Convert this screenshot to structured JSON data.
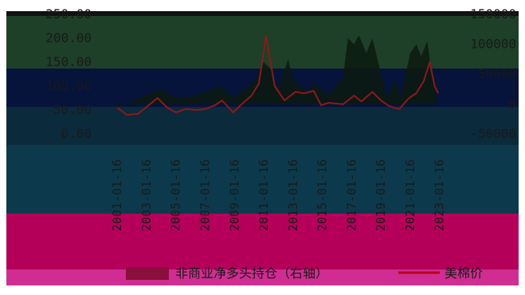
{
  "colors": {
    "band_top": "#1e3f28",
    "band_upper": "#06133a",
    "band_mid": "#0b2a3c",
    "band_lower": "#0c3a4c",
    "band_pink": "#b5005a",
    "band_pink_bottom": "#cf2d91",
    "area": "#0c1a10",
    "line": "#8b1a1a",
    "legend_area": "#8a0f3c",
    "legend_line": "#b8001c"
  },
  "chart_data": {
    "type": "line+area",
    "title": "",
    "xlabel": "",
    "left_axis": {
      "ylim": [
        0,
        250
      ],
      "ticks": [
        "250.00",
        "200.00",
        "150.00",
        "100.00",
        "50.00",
        "0.00"
      ]
    },
    "right_axis": {
      "ylim": [
        -50000,
        150000
      ],
      "ticks": [
        "150000",
        "100000",
        "50000",
        "0",
        "-50000"
      ]
    },
    "x_ticks": [
      "2001-01-16",
      "2003-01-16",
      "2005-01-16",
      "2007-01-16",
      "2009-01-16",
      "2011-01-16",
      "2013-01-16",
      "2015-01-16",
      "2017-01-16",
      "2019-01-16",
      "2021-01-16",
      "2023-01-16"
    ],
    "x_range": [
      "2000-01-01",
      "2023-06-30"
    ],
    "series": [
      {
        "name": "非商业净多头持仓（右轴）",
        "type": "area",
        "axis": "right",
        "points": [
          [
            "2001-01-16",
            -5000
          ],
          [
            "2002-01-16",
            5000
          ],
          [
            "2003-01-16",
            15000
          ],
          [
            "2004-01-16",
            25000
          ],
          [
            "2005-01-16",
            10000
          ],
          [
            "2006-01-16",
            12000
          ],
          [
            "2007-01-16",
            20000
          ],
          [
            "2008-01-16",
            30000
          ],
          [
            "2009-01-16",
            10000
          ],
          [
            "2010-06-16",
            40000
          ],
          [
            "2011-01-16",
            70000
          ],
          [
            "2011-06-16",
            60000
          ],
          [
            "2012-01-16",
            25000
          ],
          [
            "2012-09-16",
            75000
          ],
          [
            "2013-01-16",
            40000
          ],
          [
            "2014-01-16",
            20000
          ],
          [
            "2014-06-16",
            35000
          ],
          [
            "2015-06-16",
            15000
          ],
          [
            "2016-06-16",
            45000
          ],
          [
            "2016-10-16",
            110000
          ],
          [
            "2017-03-16",
            100000
          ],
          [
            "2017-07-16",
            115000
          ],
          [
            "2018-01-16",
            85000
          ],
          [
            "2018-06-16",
            110000
          ],
          [
            "2019-06-16",
            10000
          ],
          [
            "2020-01-16",
            40000
          ],
          [
            "2020-05-16",
            10000
          ],
          [
            "2021-01-16",
            85000
          ],
          [
            "2021-06-16",
            100000
          ],
          [
            "2021-10-16",
            80000
          ],
          [
            "2022-03-16",
            105000
          ],
          [
            "2022-06-16",
            60000
          ],
          [
            "2022-10-16",
            30000
          ]
        ]
      },
      {
        "name": "美棉价",
        "type": "line",
        "axis": "left",
        "points": [
          [
            "2001-01-16",
            55
          ],
          [
            "2001-09-16",
            40
          ],
          [
            "2002-06-16",
            42
          ],
          [
            "2003-10-16",
            75
          ],
          [
            "2004-06-16",
            55
          ],
          [
            "2005-01-16",
            45
          ],
          [
            "2005-09-16",
            52
          ],
          [
            "2006-06-16",
            50
          ],
          [
            "2007-01-16",
            52
          ],
          [
            "2007-09-16",
            60
          ],
          [
            "2008-03-16",
            70
          ],
          [
            "2008-12-16",
            45
          ],
          [
            "2009-06-16",
            60
          ],
          [
            "2010-03-16",
            80
          ],
          [
            "2010-09-16",
            105
          ],
          [
            "2011-03-16",
            205
          ],
          [
            "2011-06-16",
            160
          ],
          [
            "2011-10-16",
            100
          ],
          [
            "2012-06-16",
            70
          ],
          [
            "2013-03-16",
            88
          ],
          [
            "2013-10-16",
            85
          ],
          [
            "2014-06-16",
            90
          ],
          [
            "2014-12-16",
            60
          ],
          [
            "2015-06-16",
            65
          ],
          [
            "2016-06-16",
            62
          ],
          [
            "2017-03-16",
            80
          ],
          [
            "2017-09-16",
            68
          ],
          [
            "2018-06-16",
            88
          ],
          [
            "2019-01-16",
            70
          ],
          [
            "2019-08-16",
            58
          ],
          [
            "2020-04-16",
            52
          ],
          [
            "2020-12-16",
            75
          ],
          [
            "2021-06-16",
            85
          ],
          [
            "2021-12-16",
            110
          ],
          [
            "2022-05-16",
            150
          ],
          [
            "2022-09-16",
            100
          ],
          [
            "2022-12-16",
            85
          ]
        ]
      }
    ],
    "legend": {
      "placement": "bottom-center"
    }
  }
}
